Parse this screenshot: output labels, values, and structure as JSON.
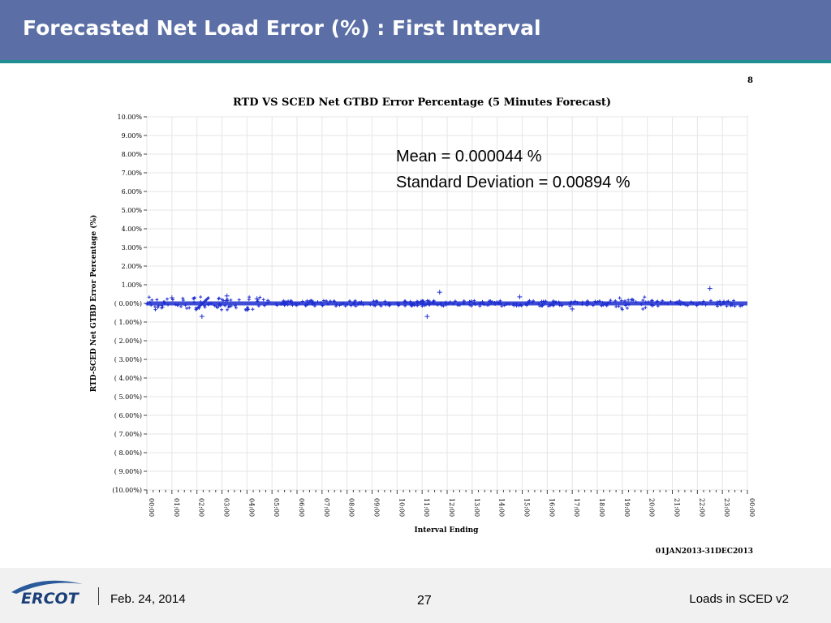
{
  "slide": {
    "title": "Forecasted Net Load Error (%) : First Interval",
    "footer_date": "Feb. 24, 2014",
    "page_number": "27",
    "footer_right": "Loads in SCED v2",
    "logo_text": "ERCOT"
  },
  "colors": {
    "title_bar": "#5b6fa6",
    "accent_line": "#1f8f94",
    "series": "#1f2fd0"
  },
  "chart_data": {
    "type": "scatter",
    "page_marker": "8",
    "title": "RTD VS SCED Net GTBD Error Percentage (5 Minutes Forecast)",
    "xlabel": "Interval Ending",
    "ylabel": "RTD-SCED Net GTBD Error Percentage (%)",
    "date_range": "01JAN2013-31DEC2013",
    "stats": [
      "Mean = 0.000044 %",
      "Standard Deviation = 0.00894 %"
    ],
    "x_ticks": [
      "00:00",
      "01:00",
      "02:00",
      "03:00",
      "04:00",
      "05:00",
      "06:00",
      "07:00",
      "08:00",
      "09:00",
      "10:00",
      "11:00",
      "12:00",
      "13:00",
      "14:00",
      "15:00",
      "16:00",
      "17:00",
      "18:00",
      "19:00",
      "20:00",
      "21:00",
      "22:00",
      "23:00",
      "00:00"
    ],
    "y_ticks": [
      "10.00%",
      "9.00%",
      "8.00%",
      "7.00%",
      "6.00%",
      "5.00%",
      "4.00%",
      "3.00%",
      "2.00%",
      "1.00%",
      "( 0.00%)",
      "( 1.00%)",
      "( 2.00%)",
      "( 3.00%)",
      "( 4.00%)",
      "( 5.00%)",
      "( 6.00%)",
      "( 7.00%)",
      "( 8.00%)",
      "( 9.00%)",
      "(10.00%)"
    ],
    "ylim": [
      -10,
      10
    ],
    "xlim": [
      0,
      24
    ],
    "grid": true,
    "notable_points": [
      {
        "x": 2.2,
        "y": -0.7
      },
      {
        "x": 3.2,
        "y": 0.4
      },
      {
        "x": 4.0,
        "y": -0.3
      },
      {
        "x": 11.2,
        "y": -0.7
      },
      {
        "x": 11.7,
        "y": 0.6
      },
      {
        "x": 14.9,
        "y": 0.35
      },
      {
        "x": 22.5,
        "y": 0.8
      },
      {
        "x": 4.4,
        "y": 0.25
      },
      {
        "x": 17.0,
        "y": -0.3
      },
      {
        "x": 1.0,
        "y": 0.3
      }
    ]
  }
}
